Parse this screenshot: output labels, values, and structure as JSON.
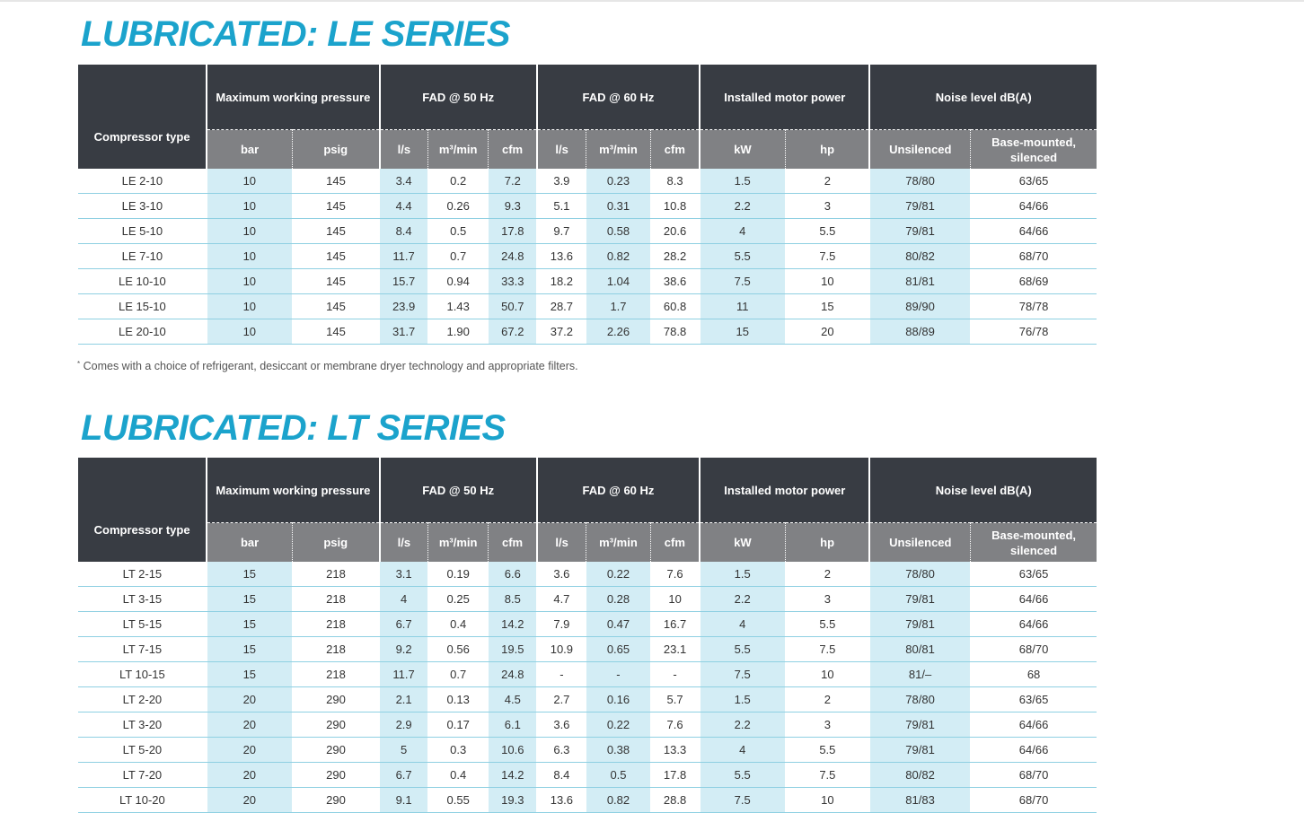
{
  "le": {
    "title": "LUBRICATED: LE SERIES",
    "headers": {
      "compressor_type": "Compressor type",
      "max_pressure": "Maximum working pressure",
      "fad50": "FAD @ 50 Hz",
      "fad60": "FAD @ 60 Hz",
      "motor_power": "Installed motor power",
      "noise": "Noise level dB(A)",
      "sub": [
        "bar",
        "psig",
        "l/s",
        "m³/min",
        "cfm",
        "l/s",
        "m³/min",
        "cfm",
        "kW",
        "hp",
        "Unsilenced",
        "Base-mounted, silenced"
      ]
    },
    "rows": [
      [
        "LE 2-10",
        "10",
        "145",
        "3.4",
        "0.2",
        "7.2",
        "3.9",
        "0.23",
        "8.3",
        "1.5",
        "2",
        "78/80",
        "63/65"
      ],
      [
        "LE 3-10",
        "10",
        "145",
        "4.4",
        "0.26",
        "9.3",
        "5.1",
        "0.31",
        "10.8",
        "2.2",
        "3",
        "79/81",
        "64/66"
      ],
      [
        "LE 5-10",
        "10",
        "145",
        "8.4",
        "0.5",
        "17.8",
        "9.7",
        "0.58",
        "20.6",
        "4",
        "5.5",
        "79/81",
        "64/66"
      ],
      [
        "LE 7-10",
        "10",
        "145",
        "11.7",
        "0.7",
        "24.8",
        "13.6",
        "0.82",
        "28.2",
        "5.5",
        "7.5",
        "80/82",
        "68/70"
      ],
      [
        "LE 10-10",
        "10",
        "145",
        "15.7",
        "0.94",
        "33.3",
        "18.2",
        "1.04",
        "38.6",
        "7.5",
        "10",
        "81/81",
        "68/69"
      ],
      [
        "LE 15-10",
        "10",
        "145",
        "23.9",
        "1.43",
        "50.7",
        "28.7",
        "1.7",
        "60.8",
        "11",
        "15",
        "89/90",
        "78/78"
      ],
      [
        "LE 20-10",
        "10",
        "145",
        "31.7",
        "1.90",
        "67.2",
        "37.2",
        "2.26",
        "78.8",
        "15",
        "20",
        "88/89",
        "76/78"
      ]
    ],
    "footnote_mark": "*",
    "footnote": "Comes with a choice of refrigerant, desiccant or membrane dryer technology and appropriate filters."
  },
  "lt": {
    "title": "LUBRICATED: LT SERIES",
    "headers": {
      "compressor_type": "Compressor type",
      "max_pressure": "Maximum working pressure",
      "fad50": "FAD @ 50 Hz",
      "fad60": "FAD @ 60 Hz",
      "motor_power": "Installed motor power",
      "noise": "Noise level dB(A)",
      "sub": [
        "bar",
        "psig",
        "l/s",
        "m³/min",
        "cfm",
        "l/s",
        "m³/min",
        "cfm",
        "kW",
        "hp",
        "Unsilenced",
        "Base-mounted, silenced"
      ]
    },
    "rows": [
      [
        "LT 2-15",
        "15",
        "218",
        "3.1",
        "0.19",
        "6.6",
        "3.6",
        "0.22",
        "7.6",
        "1.5",
        "2",
        "78/80",
        "63/65"
      ],
      [
        "LT 3-15",
        "15",
        "218",
        "4",
        "0.25",
        "8.5",
        "4.7",
        "0.28",
        "10",
        "2.2",
        "3",
        "79/81",
        "64/66"
      ],
      [
        "LT 5-15",
        "15",
        "218",
        "6.7",
        "0.4",
        "14.2",
        "7.9",
        "0.47",
        "16.7",
        "4",
        "5.5",
        "79/81",
        "64/66"
      ],
      [
        "LT 7-15",
        "15",
        "218",
        "9.2",
        "0.56",
        "19.5",
        "10.9",
        "0.65",
        "23.1",
        "5.5",
        "7.5",
        "80/81",
        "68/70"
      ],
      [
        "LT 10-15",
        "15",
        "218",
        "11.7",
        "0.7",
        "24.8",
        "-",
        "-",
        "-",
        "7.5",
        "10",
        "81/–",
        "68"
      ],
      [
        "LT 2-20",
        "20",
        "290",
        "2.1",
        "0.13",
        "4.5",
        "2.7",
        "0.16",
        "5.7",
        "1.5",
        "2",
        "78/80",
        "63/65"
      ],
      [
        "LT 3-20",
        "20",
        "290",
        "2.9",
        "0.17",
        "6.1",
        "3.6",
        "0.22",
        "7.6",
        "2.2",
        "3",
        "79/81",
        "64/66"
      ],
      [
        "LT 5-20",
        "20",
        "290",
        "5",
        "0.3",
        "10.6",
        "6.3",
        "0.38",
        "13.3",
        "4",
        "5.5",
        "79/81",
        "64/66"
      ],
      [
        "LT 7-20",
        "20",
        "290",
        "6.7",
        "0.4",
        "14.2",
        "8.4",
        "0.5",
        "17.8",
        "5.5",
        "7.5",
        "80/82",
        "68/70"
      ],
      [
        "LT 10-20",
        "20",
        "290",
        "9.1",
        "0.55",
        "19.3",
        "13.6",
        "0.82",
        "28.8",
        "7.5",
        "10",
        "81/83",
        "68/70"
      ]
    ]
  }
}
